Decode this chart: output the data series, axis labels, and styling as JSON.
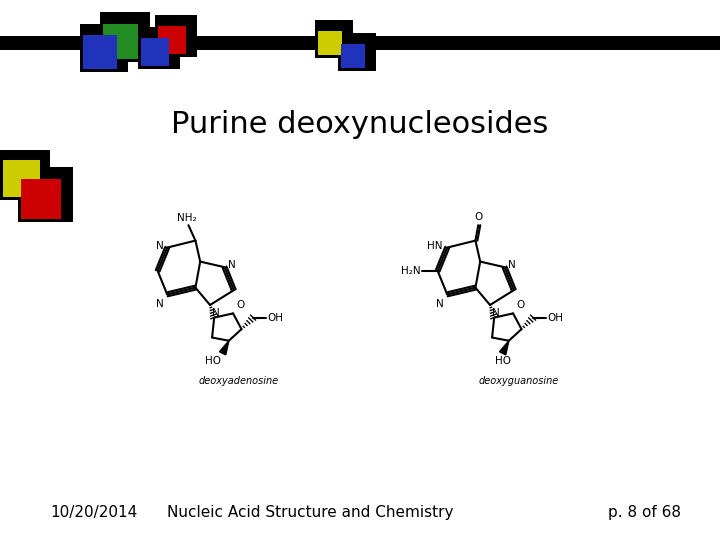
{
  "title": "Purine deoxynucleosides",
  "footer_date": "10/20/2014",
  "footer_course": "Nucleic Acid Structure and Chemistry",
  "footer_page": "p. 8 of 68",
  "bg_color": "white",
  "title_fontsize": 22,
  "footer_fontsize": 11,
  "bar_color": "black",
  "label_adenosine": "deoxyadenosine",
  "label_guanosine": "deoxyguanosine",
  "label_fontsize": 7
}
